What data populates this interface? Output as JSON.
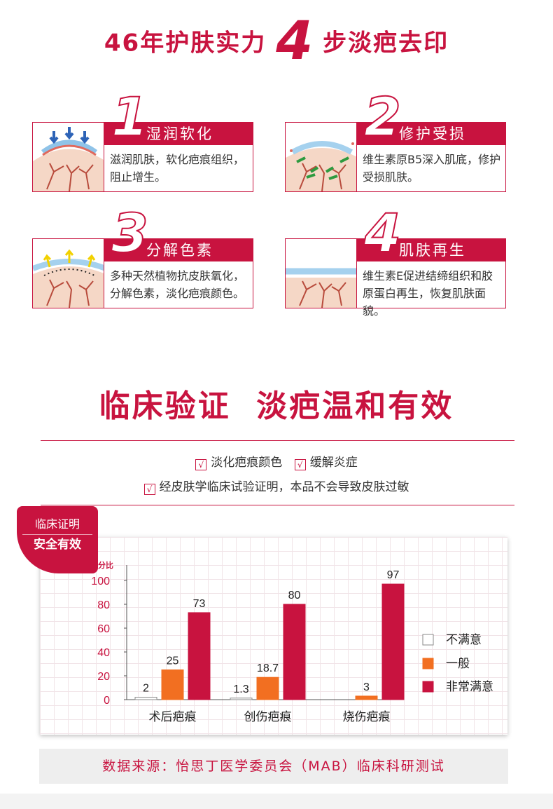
{
  "headline": {
    "part1": "46年护肤实力",
    "num": "4",
    "part2": "步淡疤去印"
  },
  "steps": [
    {
      "num": "1",
      "title": "湿润软化",
      "desc": "滋润肌肤，软化疤痕组织，阻止增生。",
      "illustration": "skin-moisture-illustration"
    },
    {
      "num": "2",
      "title": "修护受损",
      "desc": "维生素原B5深入肌底，修护受损肌肤。",
      "illustration": "skin-repair-illustration"
    },
    {
      "num": "3",
      "title": "分解色素",
      "desc": "多种天然植物抗皮肤氧化，分解色素，淡化疤痕颜色。",
      "illustration": "pigment-breakdown-illustration"
    },
    {
      "num": "4",
      "title": "肌肤再生",
      "desc": "维生素E促进结缔组织和胶原蛋白再生，恢复肌肤面貌。",
      "illustration": "skin-regeneration-illustration"
    }
  ],
  "section_title": "临床验证  淡疤温和有效",
  "claims": {
    "c1": "淡化疤痕颜色",
    "c2": "缓解炎症",
    "c3": "经皮肤学临床试验证明，本品不会导致皮肤过敏"
  },
  "badge": {
    "line1": "临床证明",
    "line2": "安全有效"
  },
  "chart_data": {
    "type": "bar",
    "ylabel": "百分比",
    "ylim": [
      0,
      100
    ],
    "yticks": [
      0,
      20,
      40,
      60,
      80,
      100
    ],
    "categories": [
      "术后疤痕",
      "创伤疤痕",
      "烧伤疤痕"
    ],
    "series": [
      {
        "name": "不满意",
        "values": [
          2,
          1.3,
          null
        ],
        "color": "#ffffff"
      },
      {
        "name": "一般",
        "values": [
          25,
          18.7,
          3
        ],
        "color": "#f26f21"
      },
      {
        "name": "非常满意",
        "values": [
          73,
          80,
          97
        ],
        "color": "#c8133f"
      }
    ],
    "data_labels": [
      [
        "2",
        "25",
        "73"
      ],
      [
        "1.3",
        "18.7",
        "80"
      ],
      [
        "",
        "3",
        "97"
      ]
    ],
    "legend": "right"
  },
  "source": "数据来源：怡思丁医学委员会（MAB）临床科研测试",
  "colors": {
    "accent": "#c8133f",
    "orange": "#f26f21"
  }
}
